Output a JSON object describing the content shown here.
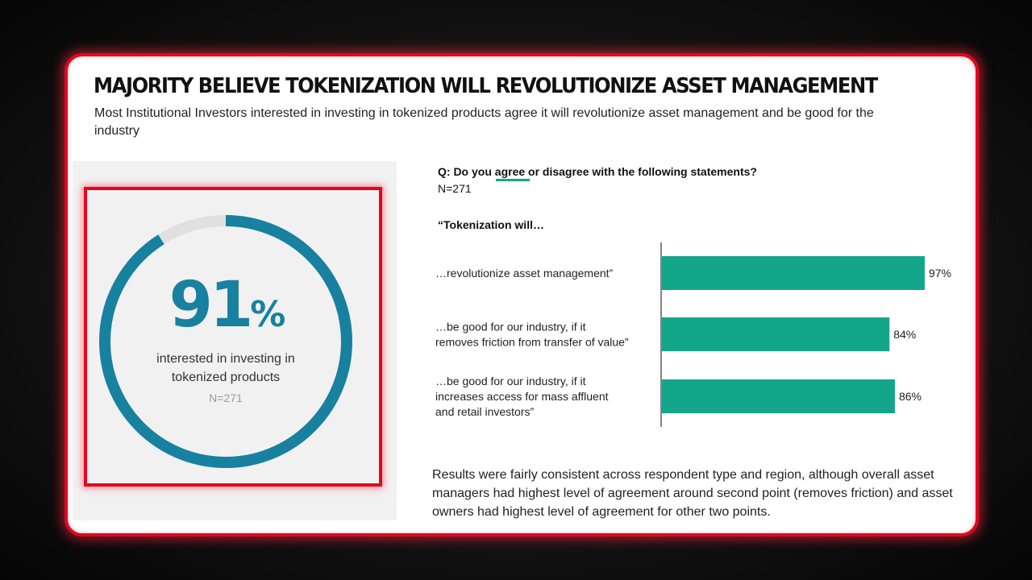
{
  "header": {
    "title": "MAJORITY BELIEVE TOKENIZATION WILL REVOLUTIONIZE ASSET MANAGEMENT",
    "subtitle": "Most Institutional Investors interested in investing in tokenized products agree it will revolutionize asset management and be good for the industry"
  },
  "stat": {
    "value": 91,
    "number_text": "91",
    "percent_sign": "%",
    "label": "interested in investing in tokenized products",
    "n": "N=271",
    "ring_color": "#17819f",
    "ring_remainder_color": "#e0e0e0"
  },
  "survey": {
    "question_prefix": "Q: Do you ",
    "question_emphasis": "agree",
    "question_suffix": " or disagree with the following statements?",
    "n": "N=271",
    "lead": "“Tokenization will…"
  },
  "chart_data": {
    "type": "bar",
    "orientation": "horizontal",
    "categories": [
      [
        "…revolutionize asset management”"
      ],
      [
        "…be good for our industry, if it",
        "removes friction from transfer of value”"
      ],
      [
        "…be good for our industry, if it",
        "increases access for mass affluent",
        "and retail investors”"
      ]
    ],
    "values": [
      97,
      84,
      86
    ],
    "value_labels": [
      "97%",
      "84%",
      "86%"
    ],
    "xlim": [
      0,
      100
    ],
    "bar_color": "#14a68a",
    "grid": false
  },
  "footnote": "Results were fairly consistent across respondent type and region, although overall asset managers had highest level of agreement around second point (removes friction) and asset owners had highest level of agreement for other two points."
}
